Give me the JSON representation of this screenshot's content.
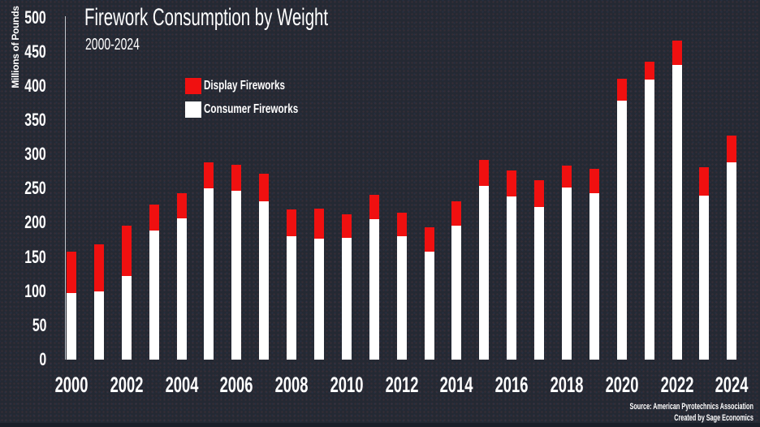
{
  "page": {
    "background_color": "#242933",
    "text_color": "#ffffff",
    "accent_red": "#f01010"
  },
  "header": {
    "title": "Firework Consumption by Weight",
    "subtitle": "2000-2024"
  },
  "y_axis": {
    "label": "Millions of Pounds"
  },
  "legend": {
    "items": [
      {
        "label": "Display Fireworks",
        "color": "#f01010"
      },
      {
        "label": "Consumer Fireworks",
        "color": "#ffffff"
      }
    ]
  },
  "footer": {
    "source": "Source: American Pyrotechnics Association",
    "credit": "Created by Sage Economics"
  },
  "chart_data": {
    "type": "bar",
    "stacked": true,
    "title": "Firework Consumption by Weight",
    "subtitle": "2000-2024",
    "xlabel": "",
    "ylabel": "Millions of Pounds",
    "units": "millions of pounds",
    "ylim": [
      0,
      500
    ],
    "yticks": [
      0,
      50,
      100,
      150,
      200,
      250,
      300,
      350,
      400,
      450,
      500
    ],
    "grid": false,
    "legend_position": "upper-left-inside",
    "categories": [
      2000,
      2001,
      2002,
      2003,
      2004,
      2005,
      2006,
      2007,
      2008,
      2009,
      2010,
      2011,
      2012,
      2013,
      2014,
      2015,
      2016,
      2017,
      2018,
      2019,
      2020,
      2021,
      2022,
      2023,
      2024
    ],
    "x_tick_labels": [
      "2000",
      "2002",
      "2004",
      "2006",
      "2008",
      "2010",
      "2012",
      "2014",
      "2016",
      "2018",
      "2020",
      "2022",
      "2024"
    ],
    "series": [
      {
        "name": "Consumer Fireworks",
        "color": "#ffffff",
        "values": [
          97,
          100,
          122,
          189,
          206,
          250,
          247,
          232,
          180,
          177,
          178,
          205,
          180,
          158,
          196,
          254,
          238,
          223,
          252,
          243,
          379,
          410,
          431,
          240,
          289
        ]
      },
      {
        "name": "Display Fireworks",
        "color": "#f01010",
        "values": [
          61,
          68,
          74,
          38,
          37,
          38,
          38,
          40,
          40,
          44,
          34,
          36,
          35,
          35,
          36,
          38,
          38,
          39,
          32,
          36,
          32,
          26,
          36,
          41,
          39
        ]
      }
    ]
  }
}
